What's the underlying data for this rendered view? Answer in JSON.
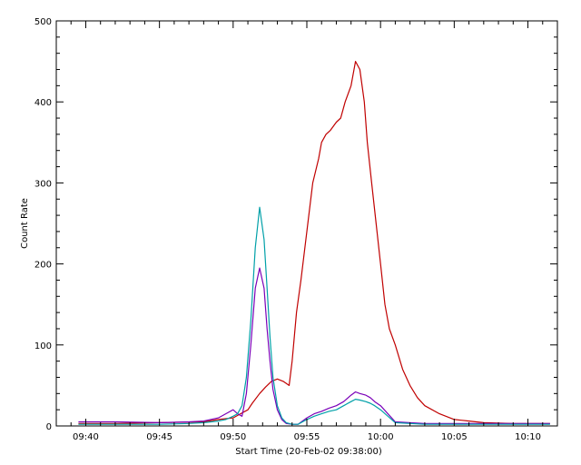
{
  "chart_data": {
    "type": "line",
    "title": "",
    "xlabel": "Start Time (20-Feb-02 09:38:00)",
    "ylabel": "Count Rate",
    "xlim_minutes": [
      0,
      34
    ],
    "ylim": [
      0,
      500
    ],
    "x_ticks": [
      {
        "label": "09:40",
        "minute": 2
      },
      {
        "label": "09:45",
        "minute": 7
      },
      {
        "label": "09:50",
        "minute": 12
      },
      {
        "label": "09:55",
        "minute": 17
      },
      {
        "label": "10:00",
        "minute": 22
      },
      {
        "label": "10:05",
        "minute": 27
      },
      {
        "label": "10:10",
        "minute": 32
      }
    ],
    "y_ticks": [
      0,
      100,
      200,
      300,
      400,
      500
    ],
    "grid": false,
    "series": [
      {
        "color": "#c00000",
        "x": [
          1.5,
          4,
          7,
          10,
          11,
          12,
          12.5,
          13,
          13.3,
          13.8,
          14.2,
          14.6,
          15,
          15.4,
          15.8,
          16,
          16.3,
          16.6,
          17,
          17.4,
          17.8,
          18,
          18.3,
          18.6,
          19,
          19.3,
          19.6,
          20,
          20.3,
          20.6,
          20.9,
          21.1,
          21.4,
          21.7,
          22,
          22.3,
          22.6,
          23,
          23.5,
          24,
          24.5,
          25,
          26,
          27,
          28,
          29,
          31,
          33.5
        ],
        "y": [
          3,
          3,
          4,
          5,
          8,
          10,
          15,
          20,
          28,
          40,
          48,
          55,
          58,
          55,
          50,
          80,
          140,
          180,
          240,
          300,
          330,
          350,
          360,
          365,
          375,
          380,
          400,
          420,
          450,
          440,
          400,
          350,
          300,
          250,
          200,
          150,
          120,
          100,
          70,
          50,
          35,
          25,
          15,
          8,
          6,
          4,
          3,
          3
        ]
      },
      {
        "color": "#7a00b8",
        "x": [
          1.5,
          4,
          7,
          9,
          10,
          11,
          11.5,
          12,
          12.3,
          12.6,
          12.9,
          13.2,
          13.5,
          13.8,
          14.1,
          14.3,
          14.5,
          14.7,
          15,
          15.3,
          15.6,
          16,
          16.4,
          17,
          17.5,
          18,
          18.5,
          19,
          19.5,
          20,
          20.3,
          20.6,
          21,
          21.3,
          21.6,
          22,
          23,
          25,
          28,
          31,
          33.5
        ],
        "y": [
          5,
          5,
          4,
          5,
          6,
          10,
          15,
          20,
          15,
          12,
          40,
          100,
          170,
          195,
          170,
          120,
          80,
          45,
          20,
          8,
          3,
          2,
          2,
          10,
          15,
          18,
          22,
          25,
          30,
          38,
          42,
          40,
          38,
          35,
          30,
          25,
          5,
          3,
          3,
          3,
          3
        ]
      },
      {
        "color": "#00a0a8",
        "x": [
          1.5,
          4,
          7,
          9,
          10,
          11,
          11.5,
          12,
          12.3,
          12.6,
          12.9,
          13.2,
          13.5,
          13.8,
          14.1,
          14.3,
          14.5,
          14.7,
          15,
          15.3,
          15.6,
          16,
          16.4,
          17,
          17.5,
          18,
          18.5,
          19,
          19.5,
          20,
          20.3,
          20.6,
          21,
          21.3,
          21.6,
          22,
          23,
          25,
          28,
          31,
          33.5
        ],
        "y": [
          2,
          2,
          2,
          3,
          4,
          6,
          8,
          12,
          15,
          25,
          60,
          130,
          220,
          270,
          230,
          170,
          110,
          60,
          25,
          10,
          4,
          2,
          2,
          8,
          12,
          15,
          18,
          20,
          25,
          30,
          33,
          32,
          30,
          28,
          25,
          20,
          4,
          2,
          2,
          2,
          2
        ]
      }
    ]
  }
}
